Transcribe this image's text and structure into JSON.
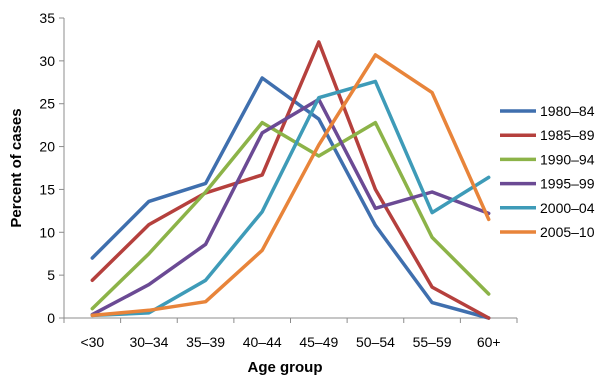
{
  "chart_data": {
    "type": "line",
    "title": "",
    "xlabel": "Age group",
    "ylabel": "Percent of cases",
    "categories": [
      "<30",
      "30–34",
      "35–39",
      "40–44",
      "45–49",
      "50–54",
      "55–59",
      "60+"
    ],
    "ylim": [
      0,
      35
    ],
    "yticks": [
      "0",
      "5",
      "10",
      "15",
      "20",
      "25",
      "30",
      "35"
    ],
    "grid": false,
    "legend_position": "right",
    "series": [
      {
        "name": "1980–84",
        "color": "#3F6FAE",
        "values": [
          7.0,
          13.6,
          15.7,
          28.0,
          23.2,
          10.8,
          1.8,
          0.0
        ]
      },
      {
        "name": "1985–89",
        "color": "#B5403D",
        "values": [
          4.4,
          10.9,
          14.6,
          16.7,
          32.2,
          15.0,
          3.6,
          0.0
        ]
      },
      {
        "name": "1990–94",
        "color": "#8CB348",
        "values": [
          1.1,
          7.5,
          14.7,
          22.8,
          18.9,
          22.8,
          9.4,
          2.8
        ]
      },
      {
        "name": "1995–99",
        "color": "#6B4A94",
        "values": [
          0.4,
          3.9,
          8.6,
          21.6,
          25.5,
          12.8,
          14.7,
          12.2
        ]
      },
      {
        "name": "2000–04",
        "color": "#3E9BB8",
        "values": [
          0.3,
          0.6,
          4.4,
          12.4,
          25.7,
          27.6,
          12.3,
          16.4
        ]
      },
      {
        "name": "2005–10",
        "color": "#E8843A",
        "values": [
          0.3,
          0.9,
          1.9,
          7.9,
          20.2,
          30.7,
          26.3,
          11.5
        ]
      }
    ]
  }
}
